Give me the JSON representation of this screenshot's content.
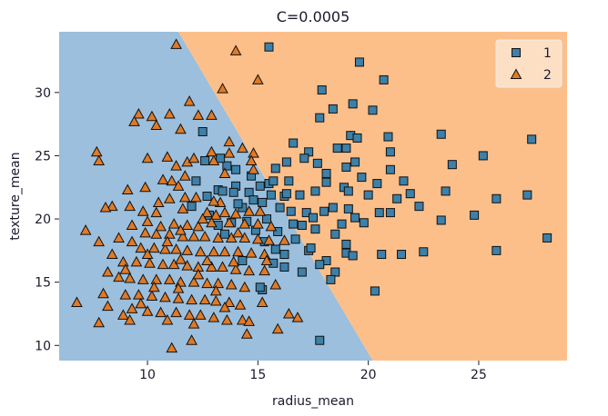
{
  "chart_data": {
    "type": "scatter",
    "title": "C=0.0005",
    "xlabel": "radius_mean",
    "ylabel": "texture_mean",
    "xlim": [
      6.0,
      29.0
    ],
    "ylim": [
      8.8,
      34.8
    ],
    "xticks": [
      10,
      15,
      20,
      25
    ],
    "yticks": [
      10,
      15,
      20,
      25,
      30
    ],
    "decision_boundary": {
      "description": "linear boundary; region left of line is class 1 color (blue), right is class 2 color (orange)",
      "points": [
        [
          11.4,
          34.8
        ],
        [
          20.2,
          8.8
        ]
      ]
    },
    "region_colors": {
      "left": "#9bbfdd",
      "right": "#fdbf8a"
    },
    "legend": {
      "position": "top-right",
      "entries": [
        {
          "label": "1",
          "marker": "square",
          "color": "#3d80a8"
        },
        {
          "label": "2",
          "marker": "triangle",
          "color": "#e07a26"
        }
      ]
    },
    "series": [
      {
        "name": "1",
        "marker": "square",
        "color": "#3d80a8",
        "points": [
          [
            15.5,
            33.6
          ],
          [
            19.6,
            32.4
          ],
          [
            20.7,
            31.0
          ],
          [
            19.3,
            29.1
          ],
          [
            17.9,
            30.2
          ],
          [
            18.4,
            28.7
          ],
          [
            20.2,
            28.6
          ],
          [
            17.8,
            28.0
          ],
          [
            23.3,
            26.7
          ],
          [
            27.4,
            26.3
          ],
          [
            19.2,
            26.6
          ],
          [
            19.5,
            26.4
          ],
          [
            20.9,
            26.5
          ],
          [
            16.6,
            26.0
          ],
          [
            12.5,
            26.9
          ],
          [
            17.3,
            25.3
          ],
          [
            18.6,
            25.6
          ],
          [
            19.0,
            25.6
          ],
          [
            21.0,
            25.3
          ],
          [
            23.8,
            24.3
          ],
          [
            25.2,
            25.0
          ],
          [
            19.4,
            24.5
          ],
          [
            16.3,
            24.5
          ],
          [
            15.8,
            24.0
          ],
          [
            17.1,
            24.8
          ],
          [
            17.7,
            24.4
          ],
          [
            19.0,
            24.1
          ],
          [
            18.1,
            23.6
          ],
          [
            21.6,
            23.0
          ],
          [
            20.4,
            22.8
          ],
          [
            23.5,
            22.2
          ],
          [
            25.8,
            21.6
          ],
          [
            27.2,
            21.9
          ],
          [
            24.8,
            20.3
          ],
          [
            23.3,
            19.9
          ],
          [
            21.9,
            22.0
          ],
          [
            21.3,
            21.6
          ],
          [
            18.9,
            22.5
          ],
          [
            19.1,
            22.2
          ],
          [
            20.0,
            21.9
          ],
          [
            17.6,
            22.2
          ],
          [
            16.9,
            21.9
          ],
          [
            16.2,
            21.8
          ],
          [
            15.1,
            22.6
          ],
          [
            15.5,
            22.8
          ],
          [
            16.4,
            23.0
          ],
          [
            14.7,
            23.4
          ],
          [
            14.0,
            23.9
          ],
          [
            13.6,
            24.2
          ],
          [
            13.3,
            24.8
          ],
          [
            12.6,
            24.6
          ],
          [
            12.2,
            23.0
          ],
          [
            13.2,
            22.3
          ],
          [
            13.4,
            22.2
          ],
          [
            14.0,
            22.6
          ],
          [
            14.6,
            22.1
          ],
          [
            14.8,
            21.5
          ],
          [
            15.2,
            21.3
          ],
          [
            15.6,
            21.9
          ],
          [
            16.0,
            20.9
          ],
          [
            16.5,
            20.6
          ],
          [
            17.2,
            20.5
          ],
          [
            17.5,
            20.1
          ],
          [
            18.0,
            20.6
          ],
          [
            18.4,
            20.9
          ],
          [
            19.1,
            20.8
          ],
          [
            19.4,
            20.1
          ],
          [
            19.8,
            19.7
          ],
          [
            20.5,
            20.5
          ],
          [
            21.0,
            20.5
          ],
          [
            22.3,
            21.0
          ],
          [
            18.8,
            19.6
          ],
          [
            18.5,
            18.8
          ],
          [
            17.6,
            19.2
          ],
          [
            17.0,
            19.5
          ],
          [
            16.6,
            19.6
          ],
          [
            15.9,
            19.0
          ],
          [
            15.3,
            18.2
          ],
          [
            15.8,
            17.6
          ],
          [
            16.2,
            17.2
          ],
          [
            17.3,
            17.5
          ],
          [
            18.1,
            16.7
          ],
          [
            19.0,
            17.3
          ],
          [
            19.3,
            17.1
          ],
          [
            20.6,
            17.2
          ],
          [
            21.5,
            17.2
          ],
          [
            22.5,
            17.4
          ],
          [
            25.8,
            17.5
          ],
          [
            28.1,
            18.5
          ],
          [
            19.0,
            18.0
          ],
          [
            15.7,
            16.5
          ],
          [
            16.2,
            16.2
          ],
          [
            17.8,
            16.4
          ],
          [
            18.5,
            15.8
          ],
          [
            17.0,
            15.8
          ],
          [
            15.2,
            14.4
          ],
          [
            18.3,
            15.2
          ],
          [
            14.3,
            16.7
          ],
          [
            13.5,
            18.8
          ],
          [
            13.2,
            19.5
          ],
          [
            12.7,
            21.8
          ],
          [
            12.0,
            21.0
          ],
          [
            14.3,
            20.9
          ],
          [
            13.8,
            19.7
          ],
          [
            15.4,
            20.0
          ],
          [
            14.5,
            19.8
          ],
          [
            14.9,
            19.1
          ],
          [
            12.8,
            20.3
          ],
          [
            15.1,
            14.6
          ],
          [
            20.3,
            14.3
          ],
          [
            17.8,
            10.4
          ],
          [
            21.0,
            23.9
          ],
          [
            19.7,
            23.3
          ],
          [
            18.1,
            22.9
          ],
          [
            16.3,
            22.0
          ],
          [
            15.7,
            23.0
          ],
          [
            13.9,
            22.1
          ],
          [
            14.1,
            21.2
          ],
          [
            17.4,
            17.7
          ],
          [
            16.7,
            18.4
          ]
        ]
      },
      {
        "name": "2",
        "marker": "triangle",
        "color": "#e07a26",
        "points": [
          [
            11.3,
            33.8
          ],
          [
            14.0,
            33.3
          ],
          [
            15.0,
            31.0
          ],
          [
            13.4,
            30.3
          ],
          [
            11.9,
            29.3
          ],
          [
            11.0,
            28.3
          ],
          [
            9.6,
            28.3
          ],
          [
            10.2,
            28.1
          ],
          [
            9.4,
            27.7
          ],
          [
            10.4,
            27.4
          ],
          [
            11.5,
            27.1
          ],
          [
            12.3,
            28.2
          ],
          [
            12.9,
            28.2
          ],
          [
            7.7,
            25.3
          ],
          [
            7.8,
            24.6
          ],
          [
            10.0,
            24.8
          ],
          [
            10.9,
            24.9
          ],
          [
            11.1,
            23.0
          ],
          [
            11.3,
            24.2
          ],
          [
            11.8,
            24.5
          ],
          [
            12.1,
            24.8
          ],
          [
            13.0,
            24.6
          ],
          [
            13.5,
            23.6
          ],
          [
            14.3,
            25.6
          ],
          [
            14.8,
            25.2
          ],
          [
            13.7,
            26.1
          ],
          [
            9.9,
            22.5
          ],
          [
            9.1,
            22.3
          ],
          [
            8.4,
            21.0
          ],
          [
            9.2,
            21.0
          ],
          [
            9.8,
            20.6
          ],
          [
            10.4,
            20.5
          ],
          [
            11.0,
            21.6
          ],
          [
            11.7,
            21.7
          ],
          [
            12.2,
            21.7
          ],
          [
            11.6,
            20.8
          ],
          [
            12.7,
            20.5
          ],
          [
            13.1,
            20.3
          ],
          [
            13.5,
            20.5
          ],
          [
            14.0,
            20.4
          ],
          [
            14.6,
            20.6
          ],
          [
            15.1,
            20.6
          ],
          [
            10.0,
            19.8
          ],
          [
            10.6,
            19.4
          ],
          [
            11.2,
            19.6
          ],
          [
            11.8,
            19.5
          ],
          [
            12.3,
            19.4
          ],
          [
            12.9,
            19.7
          ],
          [
            13.7,
            19.7
          ],
          [
            14.4,
            19.6
          ],
          [
            15.0,
            19.6
          ],
          [
            15.6,
            19.4
          ],
          [
            9.9,
            18.9
          ],
          [
            10.4,
            18.8
          ],
          [
            11.0,
            18.8
          ],
          [
            11.6,
            18.6
          ],
          [
            12.1,
            18.6
          ],
          [
            12.6,
            18.6
          ],
          [
            13.2,
            18.5
          ],
          [
            13.8,
            18.5
          ],
          [
            14.4,
            18.5
          ],
          [
            15.0,
            18.4
          ],
          [
            15.5,
            18.3
          ],
          [
            16.2,
            18.3
          ],
          [
            8.7,
            18.5
          ],
          [
            9.3,
            18.2
          ],
          [
            9.7,
            17.7
          ],
          [
            10.3,
            17.7
          ],
          [
            10.8,
            17.6
          ],
          [
            11.3,
            17.6
          ],
          [
            11.8,
            17.5
          ],
          [
            12.4,
            17.4
          ],
          [
            13.0,
            17.4
          ],
          [
            13.5,
            17.4
          ],
          [
            14.1,
            17.4
          ],
          [
            14.7,
            17.3
          ],
          [
            15.3,
            17.2
          ],
          [
            8.9,
            16.6
          ],
          [
            9.5,
            16.6
          ],
          [
            10.1,
            16.5
          ],
          [
            10.7,
            16.4
          ],
          [
            11.2,
            16.4
          ],
          [
            11.8,
            16.3
          ],
          [
            12.3,
            16.2
          ],
          [
            12.9,
            16.2
          ],
          [
            13.4,
            16.2
          ],
          [
            14.0,
            16.0
          ],
          [
            14.6,
            15.9
          ],
          [
            15.3,
            15.9
          ],
          [
            8.2,
            15.8
          ],
          [
            8.7,
            15.4
          ],
          [
            9.2,
            15.3
          ],
          [
            9.8,
            15.2
          ],
          [
            10.4,
            15.2
          ],
          [
            11.0,
            15.2
          ],
          [
            11.5,
            15.0
          ],
          [
            12.1,
            15.0
          ],
          [
            12.7,
            14.9
          ],
          [
            13.2,
            14.9
          ],
          [
            13.8,
            14.8
          ],
          [
            14.4,
            14.6
          ],
          [
            15.8,
            14.8
          ],
          [
            8.0,
            14.1
          ],
          [
            9.0,
            14.0
          ],
          [
            9.6,
            14.0
          ],
          [
            10.2,
            13.9
          ],
          [
            10.8,
            13.8
          ],
          [
            11.4,
            13.7
          ],
          [
            12.0,
            13.6
          ],
          [
            12.6,
            13.6
          ],
          [
            13.1,
            13.5
          ],
          [
            13.7,
            13.4
          ],
          [
            14.2,
            13.2
          ],
          [
            6.8,
            13.4
          ],
          [
            8.2,
            13.1
          ],
          [
            9.3,
            12.9
          ],
          [
            10.0,
            12.7
          ],
          [
            10.6,
            12.6
          ],
          [
            11.3,
            12.6
          ],
          [
            11.9,
            12.4
          ],
          [
            12.4,
            12.4
          ],
          [
            13.0,
            12.2
          ],
          [
            13.6,
            12.0
          ],
          [
            14.3,
            12.0
          ],
          [
            7.8,
            11.8
          ],
          [
            8.9,
            12.4
          ],
          [
            10.9,
            12.0
          ],
          [
            12.1,
            11.7
          ],
          [
            14.6,
            11.9
          ],
          [
            16.4,
            12.5
          ],
          [
            16.8,
            12.2
          ],
          [
            15.9,
            11.3
          ],
          [
            14.5,
            10.9
          ],
          [
            11.1,
            9.8
          ],
          [
            12.0,
            10.4
          ],
          [
            9.2,
            12.0
          ],
          [
            10.7,
            23.1
          ],
          [
            11.4,
            22.6
          ],
          [
            10.5,
            21.3
          ],
          [
            9.3,
            19.5
          ],
          [
            8.1,
            20.9
          ],
          [
            7.2,
            19.1
          ],
          [
            7.8,
            18.2
          ],
          [
            8.4,
            17.2
          ],
          [
            9.0,
            16.0
          ],
          [
            10.0,
            17.2
          ],
          [
            10.9,
            18.2
          ],
          [
            11.5,
            19.1
          ],
          [
            12.5,
            20.0
          ],
          [
            13.3,
            21.3
          ],
          [
            14.8,
            23.9
          ],
          [
            14.7,
            24.6
          ],
          [
            13.7,
            25.2
          ],
          [
            11.7,
            23.4
          ],
          [
            12.9,
            25.3
          ],
          [
            13.0,
            21.4
          ],
          [
            14.1,
            18.9
          ],
          [
            12.3,
            15.6
          ],
          [
            13.1,
            14.3
          ],
          [
            11.4,
            14.5
          ],
          [
            10.3,
            14.6
          ],
          [
            9.7,
            13.3
          ],
          [
            13.5,
            13.0
          ],
          [
            15.4,
            16.7
          ],
          [
            15.2,
            13.4
          ],
          [
            11.5,
            16.8
          ],
          [
            12.7,
            16.7
          ],
          [
            13.9,
            16.6
          ]
        ]
      }
    ]
  }
}
